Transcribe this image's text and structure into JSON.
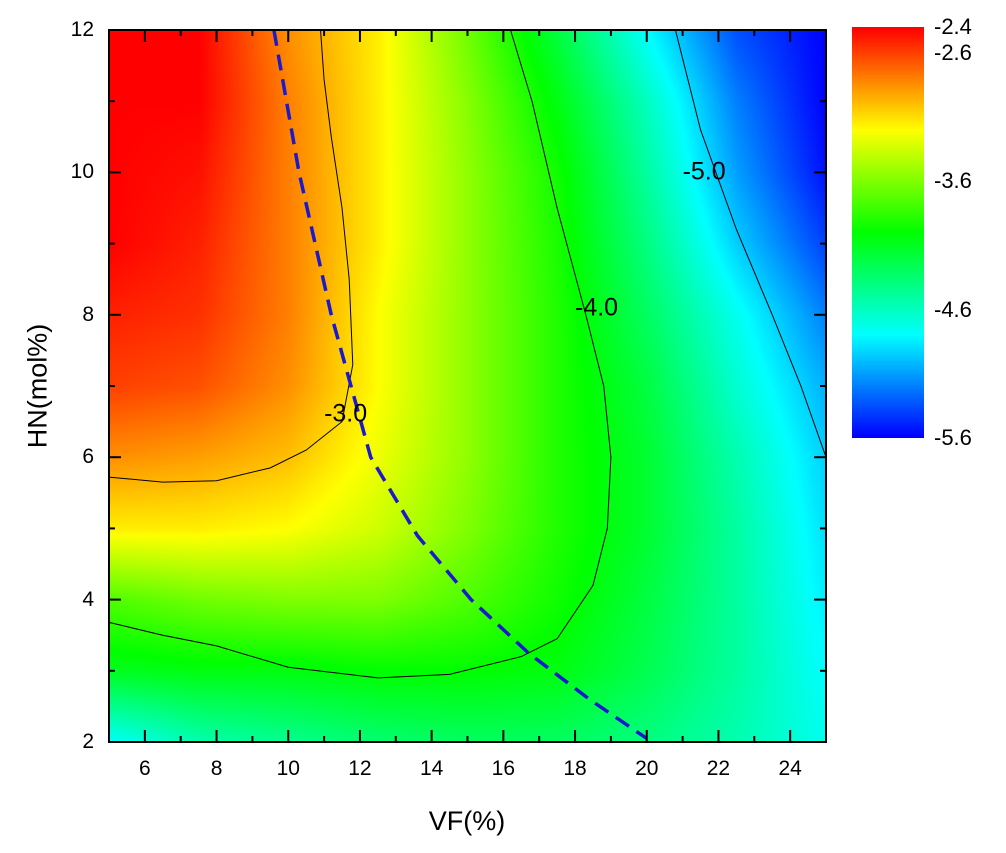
{
  "chart_data": {
    "type": "heatmap",
    "xlabel": "VF(%)",
    "ylabel": "HN(mol%)",
    "xlim": [
      5,
      25
    ],
    "ylim": [
      2,
      12
    ],
    "x_ticks": [
      "6",
      "8",
      "10",
      "12",
      "14",
      "16",
      "18",
      "20",
      "22",
      "24"
    ],
    "y_ticks": [
      "2",
      "4",
      "6",
      "8",
      "10",
      "12"
    ],
    "grid": false,
    "grid_x": [
      5,
      7.5,
      10,
      12.5,
      15,
      17.5,
      20,
      22.5,
      25
    ],
    "grid_y": [
      2,
      3,
      4,
      5,
      6,
      7,
      8,
      9,
      10,
      11,
      12
    ],
    "z": [
      [
        -4.8,
        -4.55,
        -4.45,
        -4.35,
        -4.3,
        -4.3,
        -4.4,
        -4.55,
        -4.75
      ],
      [
        -4.1,
        -4.05,
        -4.05,
        -4.0,
        -4.0,
        -4.05,
        -4.25,
        -4.5,
        -4.8
      ],
      [
        -3.75,
        -3.65,
        -3.6,
        -3.6,
        -3.75,
        -3.95,
        -4.2,
        -4.5,
        -4.85
      ],
      [
        -3.15,
        -3.15,
        -3.2,
        -3.35,
        -3.6,
        -3.9,
        -4.15,
        -4.5,
        -4.9
      ],
      [
        -2.85,
        -2.9,
        -3.0,
        -3.25,
        -3.55,
        -3.9,
        -4.15,
        -4.55,
        -4.95
      ],
      [
        -2.6,
        -2.65,
        -2.85,
        -3.2,
        -3.55,
        -3.9,
        -4.2,
        -4.65,
        -5.05
      ],
      [
        -2.5,
        -2.55,
        -2.8,
        -3.2,
        -3.55,
        -3.9,
        -4.3,
        -4.75,
        -5.2
      ],
      [
        -2.4,
        -2.5,
        -2.8,
        -3.15,
        -3.55,
        -3.92,
        -4.4,
        -4.95,
        -5.4
      ],
      [
        -2.4,
        -2.45,
        -2.8,
        -3.15,
        -3.55,
        -3.95,
        -4.5,
        -5.1,
        -5.55
      ],
      [
        -2.4,
        -2.4,
        -2.8,
        -3.15,
        -3.58,
        -4.05,
        -4.6,
        -5.2,
        -5.6
      ],
      [
        -2.4,
        -2.4,
        -2.85,
        -3.15,
        -3.65,
        -4.2,
        -4.8,
        -5.35,
        -5.6
      ]
    ],
    "colorbar": {
      "range": [
        -5.6,
        -2.4
      ],
      "tick_labels": [
        "-2.4",
        "-2.6",
        "-3.6",
        "-4.6",
        "-5.6"
      ],
      "tick_values": [
        -2.4,
        -2.6,
        -3.6,
        -4.6,
        -5.6
      ],
      "colormap": [
        {
          "value": -2.4,
          "color": "#ff0000"
        },
        {
          "value": -2.8,
          "color": "#ff8000"
        },
        {
          "value": -3.2,
          "color": "#ffff00"
        },
        {
          "value": -4.0,
          "color": "#00ff00"
        },
        {
          "value": -4.8,
          "color": "#00ffff"
        },
        {
          "value": -5.6,
          "color": "#0000ff"
        }
      ]
    },
    "contours": [
      {
        "level": "-3.0",
        "label_at": [
          11.6,
          6.6
        ],
        "points": [
          [
            5,
            5.72
          ],
          [
            6.5,
            5.65
          ],
          [
            8,
            5.67
          ],
          [
            9.5,
            5.85
          ],
          [
            10.5,
            6.1
          ],
          [
            11.5,
            6.5
          ],
          [
            11.8,
            7.3
          ],
          [
            11.7,
            8.5
          ],
          [
            11.5,
            9.5
          ],
          [
            11.2,
            10.5
          ],
          [
            11.0,
            11.3
          ],
          [
            10.9,
            12
          ]
        ]
      },
      {
        "level": "-4.0",
        "label_at": [
          18.6,
          8.1
        ],
        "points": [
          [
            5,
            3.68
          ],
          [
            6.5,
            3.5
          ],
          [
            8,
            3.35
          ],
          [
            10,
            3.05
          ],
          [
            12.5,
            2.9
          ],
          [
            14.5,
            2.95
          ],
          [
            16.5,
            3.2
          ],
          [
            17.5,
            3.45
          ],
          [
            18.5,
            4.2
          ],
          [
            18.9,
            5
          ],
          [
            19,
            6
          ],
          [
            18.8,
            7
          ],
          [
            18.3,
            8
          ],
          [
            17.5,
            9.5
          ],
          [
            16.8,
            11
          ],
          [
            16.2,
            12
          ]
        ]
      },
      {
        "level": "-5.0",
        "label_at": [
          21.6,
          10.0
        ],
        "points": [
          [
            20.8,
            12
          ],
          [
            21.5,
            10.6
          ],
          [
            22.5,
            9.2
          ],
          [
            23.5,
            8
          ],
          [
            24.3,
            7
          ],
          [
            25,
            6
          ]
        ]
      }
    ],
    "dashed_line": {
      "color": "#1a1acc",
      "points": [
        [
          9.6,
          12
        ],
        [
          10.3,
          10
        ],
        [
          11.2,
          8
        ],
        [
          12.3,
          6
        ],
        [
          13.6,
          4.9
        ],
        [
          15.1,
          4
        ],
        [
          16.7,
          3.25
        ],
        [
          18.4,
          2.6
        ],
        [
          20,
          2.05
        ]
      ]
    }
  }
}
